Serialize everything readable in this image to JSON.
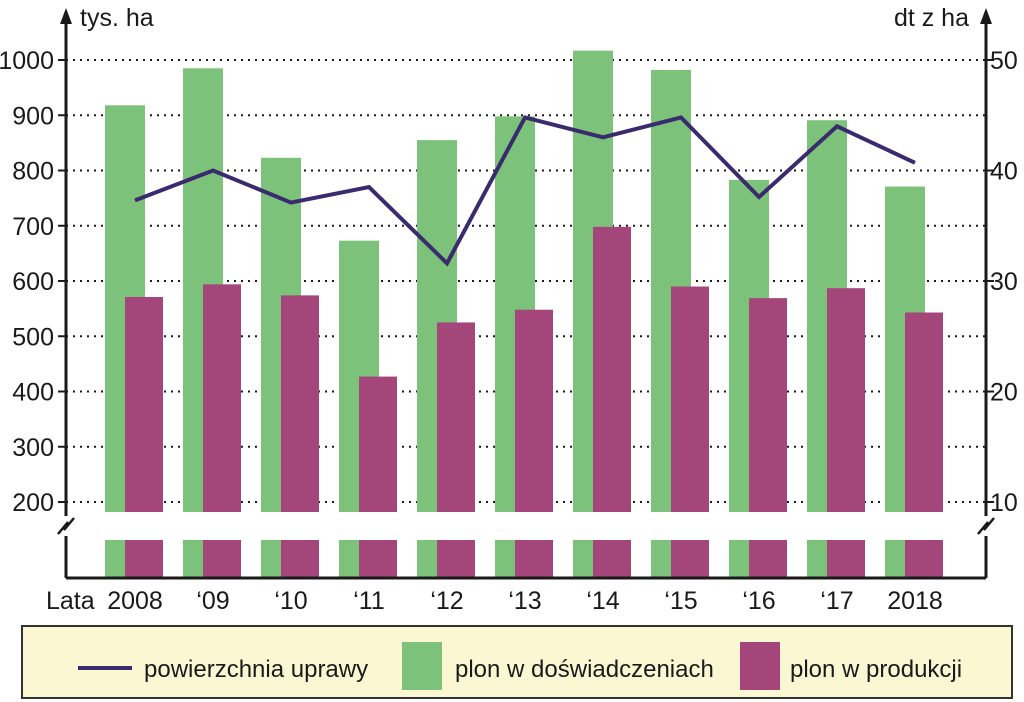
{
  "chart_data": {
    "type": "bar",
    "categories": [
      "2008",
      "‘09",
      "‘10",
      "‘11",
      "‘12",
      "‘13",
      "‘14",
      "‘15",
      "‘16",
      "‘17",
      "2018"
    ],
    "x_axis_prefix": "Lata",
    "left_axis": {
      "unit": "tys. ha",
      "ticks": [
        200,
        300,
        400,
        500,
        600,
        700,
        800,
        900,
        1000
      ],
      "range": [
        200,
        1000
      ]
    },
    "right_axis": {
      "unit": "dt z ha",
      "ticks": [
        10,
        20,
        30,
        40,
        50
      ],
      "range": [
        10,
        50
      ]
    },
    "grid": "dotted horizontal",
    "axis_break": true,
    "series": [
      {
        "name": "plon w doświadczeniach",
        "kind": "bar",
        "axis": "left",
        "color": "#7dc27a",
        "values": [
          918,
          985,
          823,
          673,
          855,
          898,
          1017,
          982,
          783,
          891,
          771
        ]
      },
      {
        "name": "plon w produkcji",
        "kind": "bar",
        "axis": "left",
        "color": "#a5467a",
        "values": [
          571,
          594,
          574,
          427,
          525,
          548,
          698,
          590,
          569,
          587,
          543
        ]
      },
      {
        "name": "powierzchnia uprawy",
        "kind": "line",
        "axis": "right",
        "color": "#3a2a6e",
        "values": [
          37.3,
          40.0,
          37.1,
          38.5,
          31.6,
          44.8,
          43.0,
          44.8,
          37.6,
          44.0,
          40.7
        ]
      }
    ],
    "legend": {
      "placement": "bottom",
      "background": "#fbf7d3",
      "items": [
        "powierzchnia uprawy",
        "plon w doświadczeniach",
        "plon w produkcji"
      ]
    }
  }
}
